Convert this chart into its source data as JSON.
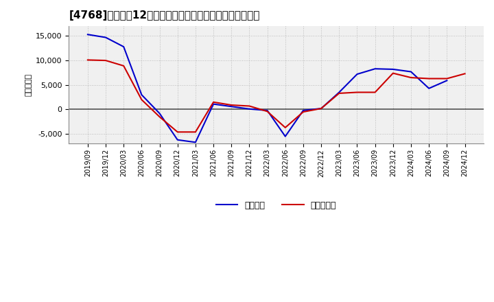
{
  "title": "[4768]　利益の12か月移動合計の対前年同期増減額の推移",
  "ylabel": "（百万円）",
  "background_color": "#ffffff",
  "plot_bg_color": "#f0f0f0",
  "grid_color": "#bbbbbb",
  "zero_line_color": "#555555",
  "ylim": [
    -7000,
    17000
  ],
  "yticks": [
    -5000,
    0,
    5000,
    10000,
    15000
  ],
  "legend_labels": [
    "経常利益",
    "当期純利益"
  ],
  "line_colors": [
    "#0000cc",
    "#cc0000"
  ],
  "dates": [
    "2019/09",
    "2019/12",
    "2020/03",
    "2020/06",
    "2020/09",
    "2020/12",
    "2021/03",
    "2021/06",
    "2021/09",
    "2021/12",
    "2022/03",
    "2022/06",
    "2022/09",
    "2022/12",
    "2023/03",
    "2023/06",
    "2023/09",
    "2023/12",
    "2024/03",
    "2024/06",
    "2024/09",
    "2024/12"
  ],
  "keijo_rieki": [
    15300,
    14700,
    12800,
    3000,
    -800,
    -6200,
    -6700,
    1100,
    600,
    100,
    -200,
    -5500,
    -200,
    200,
    3500,
    7200,
    8300,
    8200,
    7700,
    4300,
    5900,
    null
  ],
  "toki_jun_rieki": [
    10100,
    10000,
    8900,
    2000,
    -1500,
    -4600,
    -4600,
    1500,
    900,
    700,
    -400,
    -3700,
    -500,
    200,
    3300,
    3500,
    3500,
    7400,
    6500,
    6300,
    6300,
    7300
  ]
}
